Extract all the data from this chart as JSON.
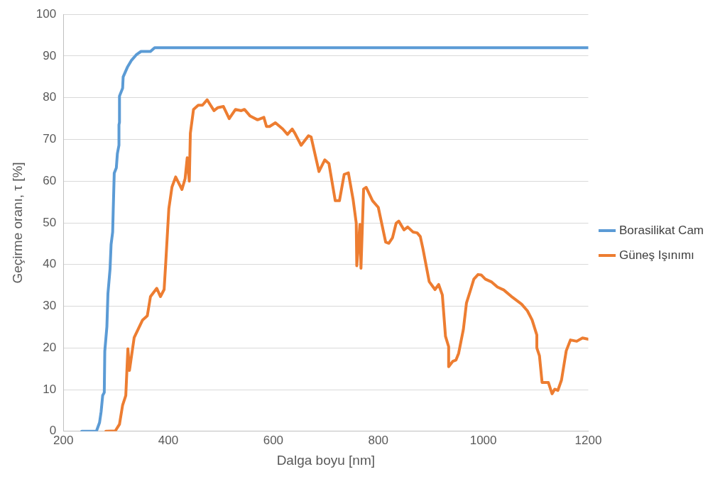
{
  "chart_data": {
    "type": "line",
    "xlabel": "Dalga boyu [nm]",
    "ylabel": "Geçirme oranı, τ [%]",
    "xlim": [
      200,
      1200
    ],
    "xticks": [
      200,
      400,
      600,
      800,
      1000,
      1200
    ],
    "ylim": [
      0,
      100
    ],
    "yticks": [
      0,
      10,
      20,
      30,
      40,
      50,
      60,
      70,
      80,
      90,
      100
    ],
    "grid": "y",
    "legend": "right",
    "marker": "none",
    "line_style": "solid",
    "series": [
      {
        "name": "Borasilikat Cam",
        "color": "#5b9bd5",
        "x": [
          235,
          263,
          269,
          272,
          275,
          278,
          279,
          283,
          285,
          289,
          291,
          294,
          295,
          297,
          301,
          303,
          306,
          306,
          307,
          307,
          313,
          314,
          322,
          330,
          339,
          348,
          366,
          374,
          1200
        ],
        "values": [
          0,
          0,
          2.1,
          4.7,
          8.6,
          9.3,
          19.2,
          25.1,
          33,
          38.9,
          44.8,
          47.8,
          52.7,
          61.9,
          63.2,
          66.6,
          68.6,
          73.5,
          74.1,
          80.4,
          82.3,
          85,
          87.3,
          89,
          90.3,
          91.1,
          91.1,
          92,
          92
        ]
      },
      {
        "name": "Güneş Işınımı",
        "color": "#ed7d31",
        "x": [
          281,
          299,
          307,
          313,
          319,
          323,
          326,
          335,
          351,
          360,
          366,
          378,
          385,
          392,
          395,
          401,
          407,
          414,
          426,
          432,
          436,
          440,
          442,
          448,
          457,
          465,
          474,
          479,
          487,
          494,
          505,
          516,
          528,
          539,
          545,
          556,
          570,
          582,
          587,
          593,
          604,
          618,
          627,
          636,
          641,
          653,
          667,
          672,
          687,
          698,
          706,
          718,
          726,
          735,
          743,
          752,
          758,
          759,
          765,
          767,
          772,
          777,
          789,
          800,
          814,
          820,
          827,
          834,
          839,
          849,
          856,
          866,
          874,
          880,
          885,
          897,
          908,
          915,
          922,
          928,
          934,
          934,
          942,
          948,
          953,
          962,
          968,
          976,
          982,
          990,
          996,
          1004,
          1016,
          1027,
          1039,
          1056,
          1073,
          1084,
          1093,
          1102,
          1102,
          1107,
          1112,
          1124,
          1131,
          1136,
          1142,
          1149,
          1158,
          1166,
          1178,
          1189,
          1200
        ],
        "values": [
          0,
          0.1,
          1.7,
          6.3,
          8.6,
          19.8,
          14.6,
          22.5,
          26.7,
          27.7,
          32.3,
          34.3,
          32.3,
          34,
          40.2,
          53.4,
          58.6,
          61,
          58,
          60.6,
          65.6,
          60,
          71.5,
          77.2,
          78.2,
          78.2,
          79.5,
          78.5,
          76.9,
          77.6,
          77.9,
          75,
          77.2,
          76.9,
          77.2,
          75.6,
          74.7,
          75.3,
          73.1,
          73.1,
          74,
          72.5,
          71.2,
          72.5,
          71.5,
          68.6,
          70.9,
          70.6,
          62.3,
          65.1,
          64.2,
          55.3,
          55.3,
          61.6,
          62,
          55.6,
          49.9,
          39.7,
          49.6,
          39.1,
          58.1,
          58.5,
          55.3,
          53.7,
          45.4,
          45.1,
          46.4,
          49.9,
          50.4,
          48.3,
          49,
          47.8,
          47.6,
          46.7,
          43.8,
          35.9,
          34,
          35.2,
          32.7,
          22.8,
          20.3,
          15.5,
          16.8,
          17.1,
          18.7,
          24.4,
          30.8,
          34,
          36.5,
          37.6,
          37.5,
          36.5,
          35.8,
          34.6,
          33.9,
          32.1,
          30.5,
          28.9,
          26.7,
          23.1,
          20,
          18.1,
          11.7,
          11.7,
          9,
          10.1,
          9.8,
          12.3,
          19.3,
          21.9,
          21.6,
          22.4,
          22.1
        ]
      }
    ]
  }
}
